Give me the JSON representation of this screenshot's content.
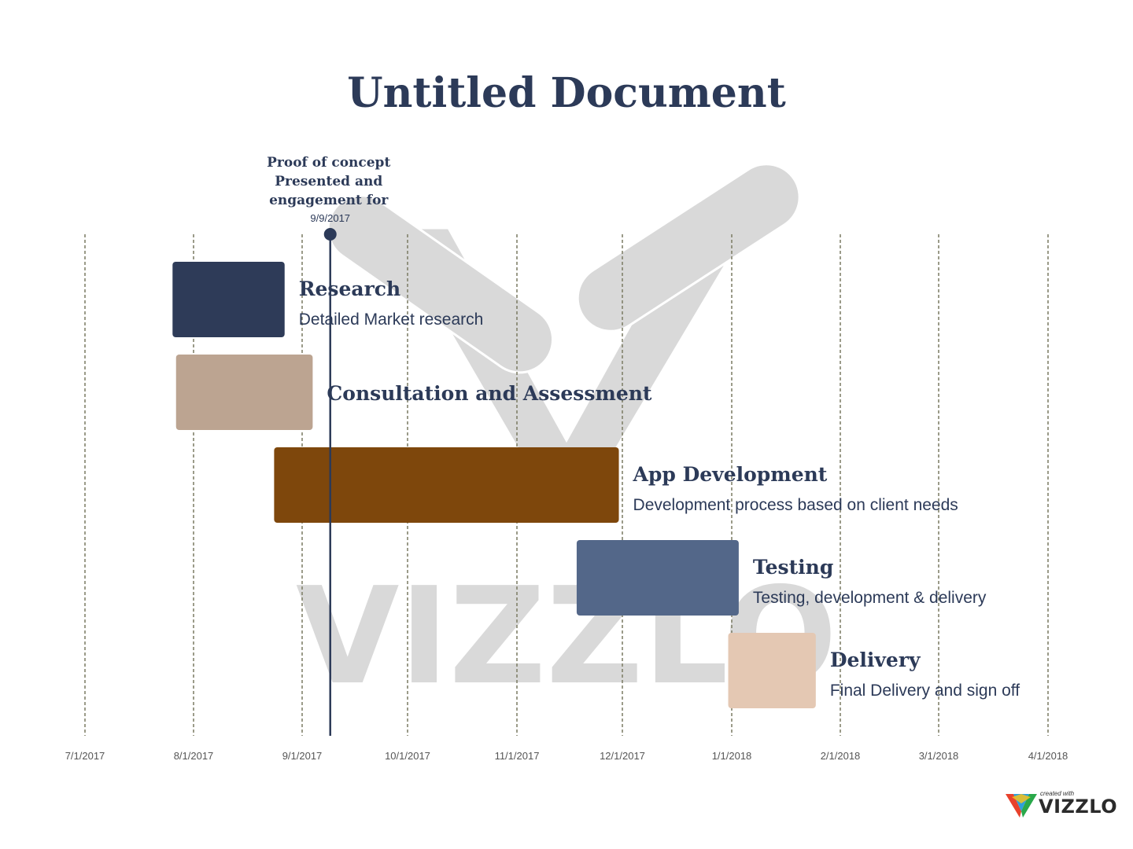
{
  "title": "Untitled Document",
  "watermark_text": "VIZZLO",
  "brand": {
    "small": "created with",
    "name": "VIZZLO"
  },
  "colors": {
    "title": "#2c3a58",
    "grid": "#7a7a62",
    "axis_label": "#555555",
    "milestone": "#2c3a58",
    "watermark": "#d9d9d9"
  },
  "chart_data": {
    "type": "gantt",
    "x_ticks": [
      "7/1/2017",
      "8/1/2017",
      "9/1/2017",
      "10/1/2017",
      "11/1/2017",
      "12/1/2017",
      "1/1/2018",
      "2/1/2018",
      "3/1/2018",
      "4/1/2018"
    ],
    "grid": true,
    "milestones": [
      {
        "label": "Proof of concept Presented and engagement for",
        "date": "9/9/2017"
      }
    ],
    "tasks": [
      {
        "name": "Research",
        "description": "Detailed Market research",
        "start": "2017-07-26",
        "end": "2017-08-27",
        "color": "#2e3b58"
      },
      {
        "name": "Consultation and Assessment",
        "description": "",
        "start": "2017-07-27",
        "end": "2017-09-04",
        "color": "#bca491"
      },
      {
        "name": "App Development",
        "description": "Development process based on client needs",
        "start": "2017-08-24",
        "end": "2017-11-30",
        "color": "#7e470c"
      },
      {
        "name": "Testing",
        "description": "Testing, development & delivery",
        "start": "2017-11-18",
        "end": "2018-01-03",
        "color": "#536789"
      },
      {
        "name": "Delivery",
        "description": "Final Delivery and sign off",
        "start": "2017-12-31",
        "end": "2018-01-25",
        "color": "#e4c8b3"
      }
    ]
  }
}
